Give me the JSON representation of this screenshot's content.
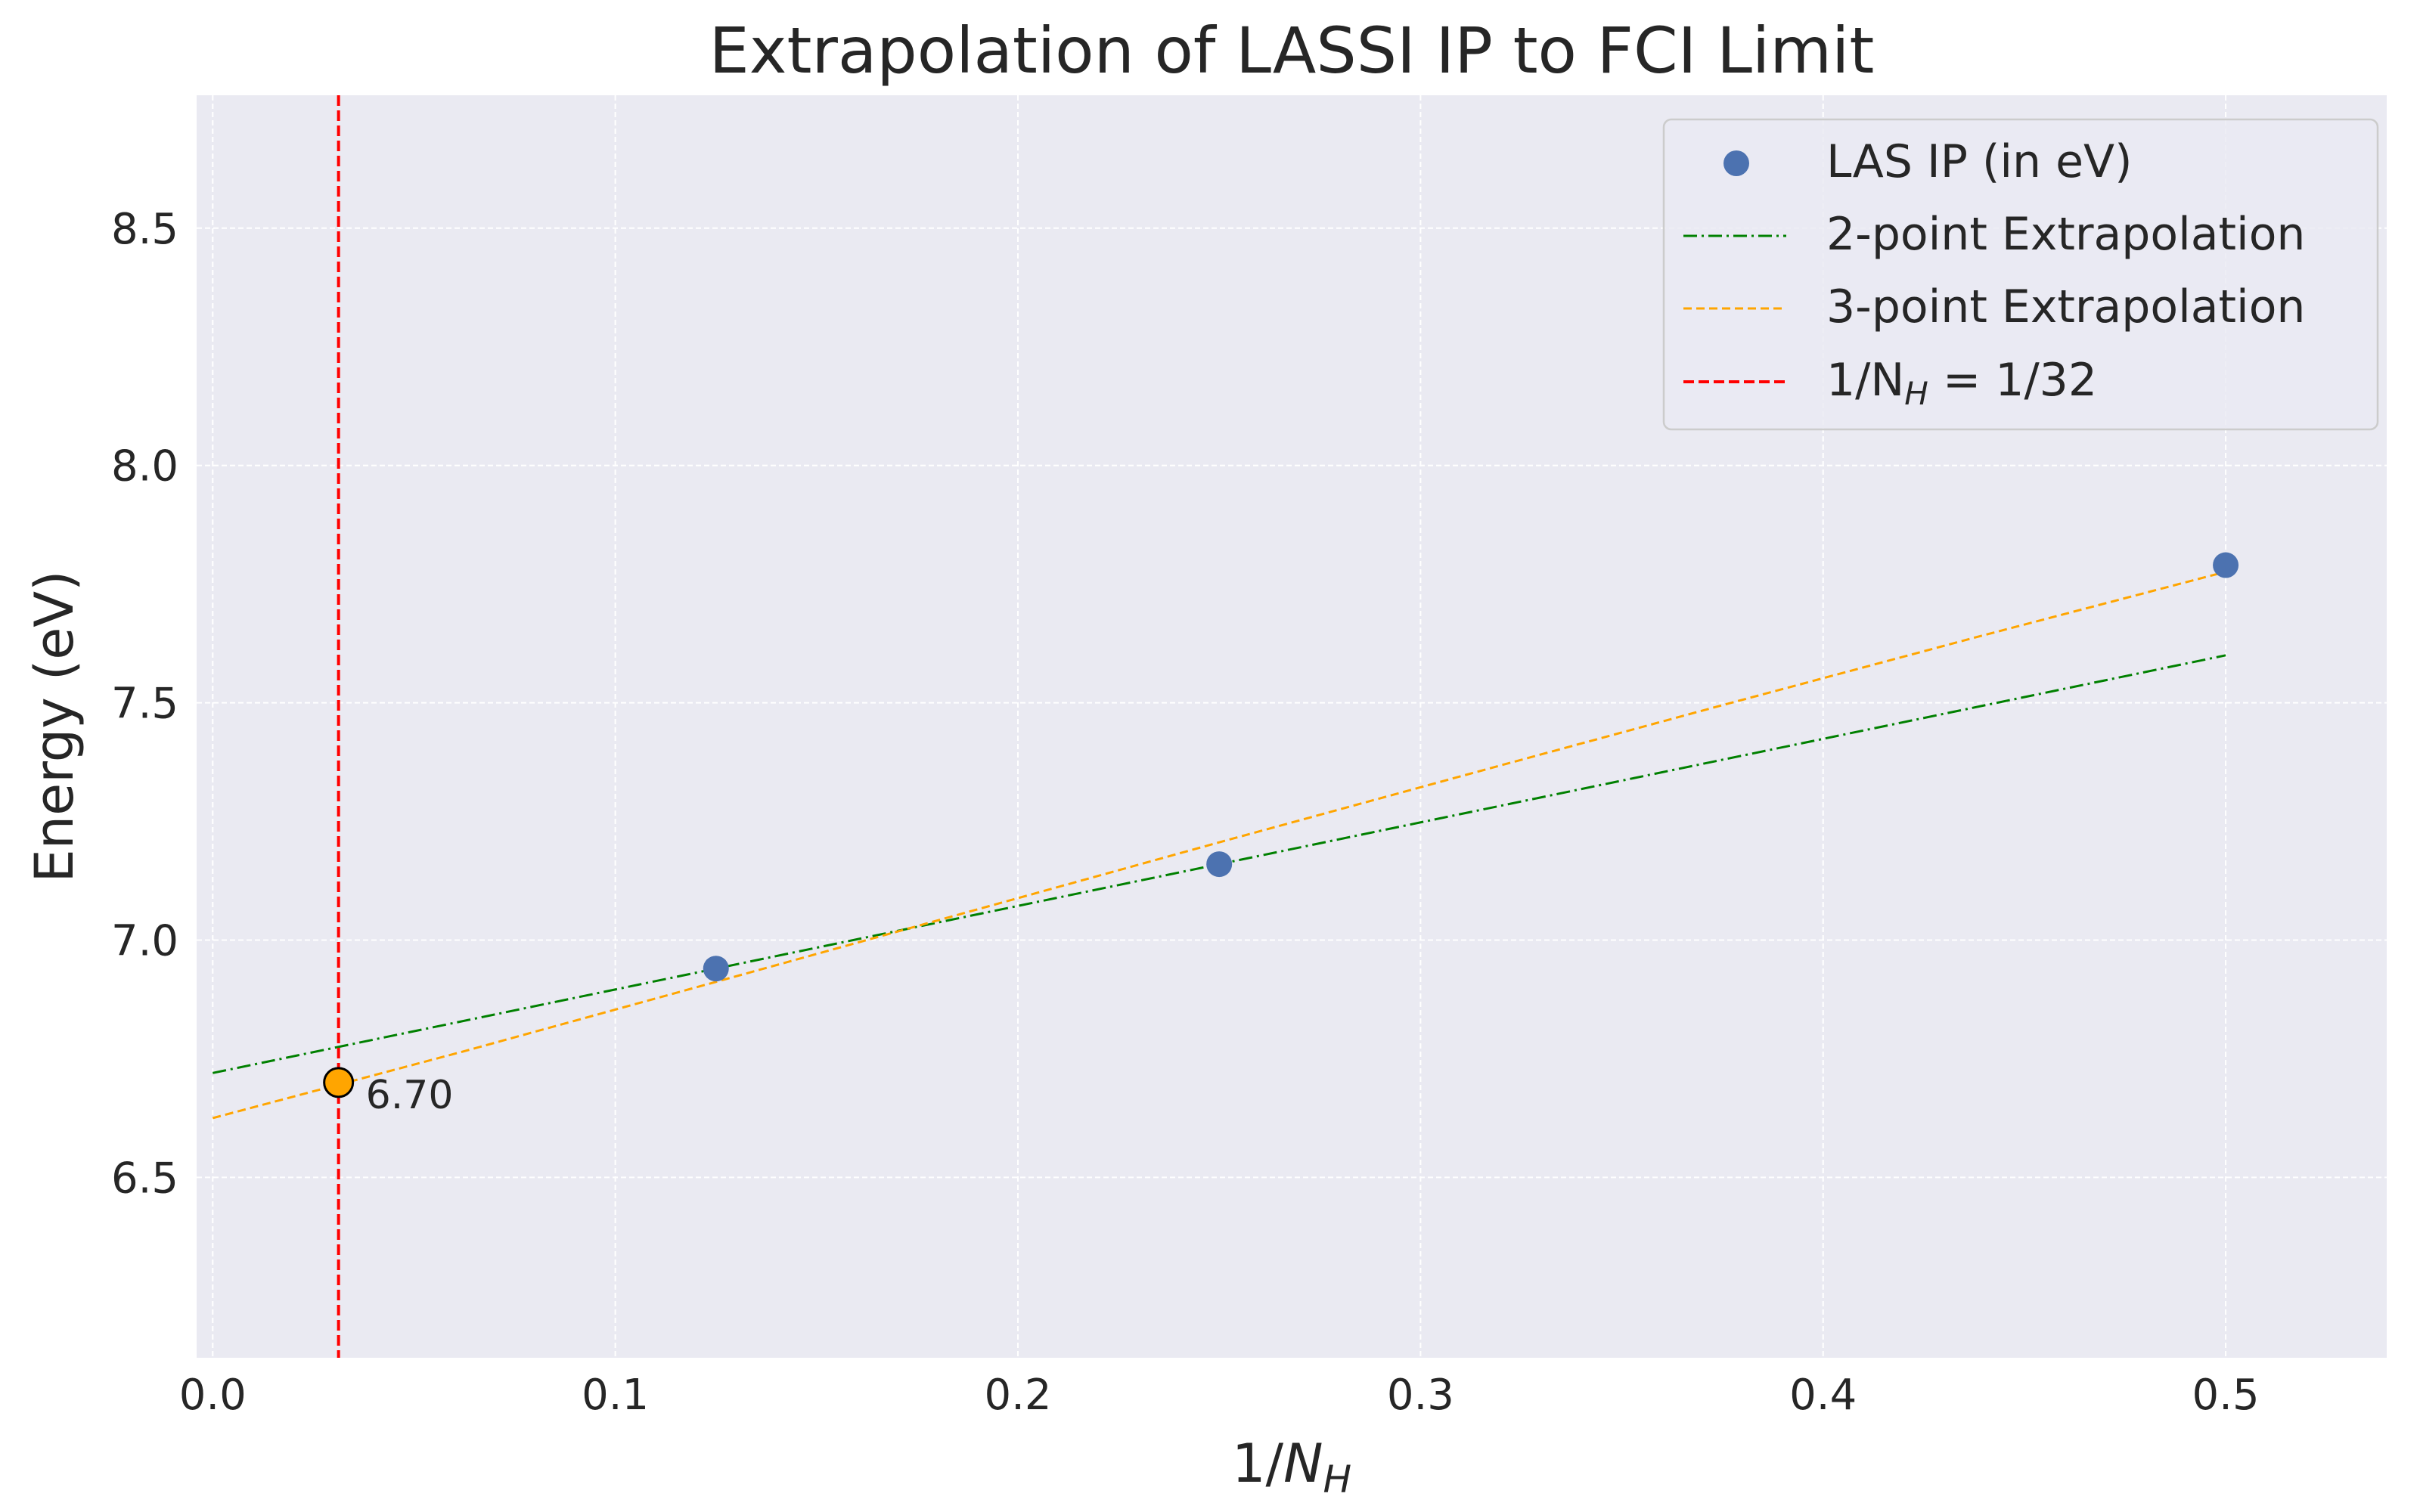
{
  "chart_data": {
    "type": "scatter",
    "title": "Extrapolation of LASSI IP to FCI Limit",
    "xlabel": {
      "base": "1/",
      "italic": "N",
      "sub": "H"
    },
    "ylabel": "Energy (eV)",
    "xlim": [
      -0.004,
      0.54
    ],
    "ylim": [
      6.12,
      8.78
    ],
    "x_ticks": [
      0.0,
      0.1,
      0.2,
      0.3,
      0.4,
      0.5
    ],
    "x_tick_labels": [
      "0.0",
      "0.1",
      "0.2",
      "0.3",
      "0.4",
      "0.5"
    ],
    "y_ticks": [
      6.5,
      7.0,
      7.5,
      8.0,
      8.5
    ],
    "y_tick_labels": [
      "6.5",
      "7.0",
      "7.5",
      "8.0",
      "8.5"
    ],
    "grid": true,
    "legend_position": "top-right",
    "series": [
      {
        "name": "LAS IP (in eV)",
        "kind": "scatter",
        "color": "#4c72b0",
        "x": [
          0.125,
          0.25,
          0.5
        ],
        "y": [
          6.94,
          7.16,
          7.79
        ]
      },
      {
        "name": "2-point Extrapolation",
        "kind": "line",
        "style": "dashdot",
        "color": "#008000",
        "x": [
          0.0,
          0.5
        ],
        "y": [
          6.72,
          7.6
        ]
      },
      {
        "name": "3-point Extrapolation",
        "kind": "curve",
        "style": "dashed",
        "color": "#ffa500",
        "x": [
          0.0,
          0.0625,
          0.125,
          0.1875,
          0.25,
          0.3125,
          0.375,
          0.4375,
          0.5
        ],
        "y": [
          6.625,
          6.766,
          6.912,
          7.059,
          7.206,
          7.351,
          7.495,
          7.637,
          7.776
        ]
      },
      {
        "name": "1/N_H = 1/32",
        "kind": "vline",
        "style": "dashed",
        "color": "#ff0000",
        "x": 0.03125
      }
    ],
    "legend_labels": [
      {
        "text": "LAS IP (in eV)"
      },
      {
        "text": "2-point Extrapolation"
      },
      {
        "text": "3-point Extrapolation"
      },
      {
        "text": "1/N",
        "sub": "H",
        "after": " = 1/32"
      }
    ],
    "highlight": {
      "x": 0.03125,
      "y": 6.7,
      "label": "6.70",
      "fill": "#ffa500"
    },
    "colors": {
      "plot_bg": "#eaeaf2",
      "grid": "#ffffff",
      "text": "#262626"
    }
  }
}
